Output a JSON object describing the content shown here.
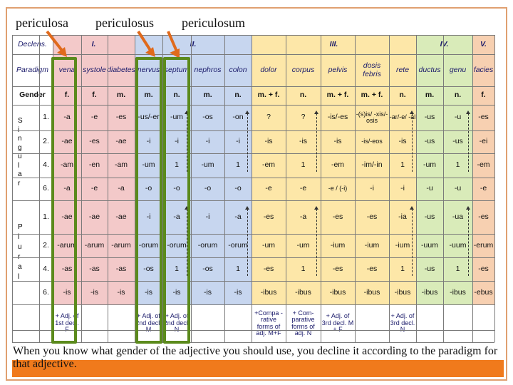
{
  "top_labels": [
    "periculosa",
    "periculosus",
    "periculosum"
  ],
  "bottom_note": "When you know what gender of the adjective you should use, you decline it according to the paradigm for that adjective.",
  "colors": {
    "decl1": "#f3c9c9",
    "decl2": "#c7d6ef",
    "decl3": "#fde7a8",
    "decl4": "#d9ebb9",
    "decl5": "#f7d0b1",
    "green_box": "#5b8a1c",
    "orange_bar": "#f07a1c"
  },
  "table": {
    "declens_label": "Declens.",
    "paradigm_label": "Paradigm",
    "gender_label": "Gender",
    "groups": [
      {
        "label": "I."
      },
      {
        "label": "II."
      },
      {
        "label": "III."
      },
      {
        "label": "IV."
      },
      {
        "label": "V."
      }
    ],
    "paradigms": [
      "vena",
      "systole",
      "diabetes",
      "nervus",
      "septum",
      "nephros",
      "colon",
      "dolor",
      "corpus",
      "pelvis",
      "dosis febris",
      "rete",
      "ductus",
      "genu",
      "facies"
    ],
    "genders": [
      "f.",
      "f.",
      "m.",
      "m.",
      "n.",
      "m.",
      "n.",
      "m. + f.",
      "n.",
      "m. + f.",
      "m. + f.",
      "n.",
      "m.",
      "n.",
      "f."
    ],
    "singular_side": [
      "S",
      "i",
      "n",
      "g",
      "u",
      "l",
      "a",
      "r"
    ],
    "plural_side": [
      "P",
      "l",
      "u",
      "r",
      "a",
      "l"
    ],
    "rows": [
      {
        "case": "1.",
        "cells": [
          "-a",
          "-e",
          "-es",
          "-us/-er",
          "-um",
          "-os",
          "-on",
          "?",
          "?",
          "-is/-es",
          "-(s)is/ -xis/-osis",
          "-ar/-e/ -al",
          "-us",
          "-u",
          "-es"
        ]
      },
      {
        "case": "2.",
        "cells": [
          "-ae",
          "-es",
          "-ae",
          "-i",
          "-i",
          "-i",
          "-i",
          "-is",
          "-is",
          "-is",
          "-is/-eos",
          "-is",
          "-us",
          "-us",
          "-ei"
        ]
      },
      {
        "case": "4.",
        "cells": [
          "-am",
          "-en",
          "-am",
          "-um",
          "1",
          "-um",
          "1",
          "-em",
          "1",
          "-em",
          "-im/-in",
          "1",
          "-um",
          "1",
          "-em"
        ]
      },
      {
        "case": "6.",
        "cells": [
          "-a",
          "-e",
          "-a",
          "-o",
          "-o",
          "-o",
          "-o",
          "-e",
          "-e",
          "-e / (-i)",
          "-i",
          "-i",
          "-u",
          "-u",
          "-e"
        ]
      },
      {
        "case": "1.",
        "cells": [
          "-ae",
          "-ae",
          "-ae",
          "-i",
          "-a",
          "-i",
          "-a",
          "-es",
          "-a",
          "-es",
          "-es",
          "-ia",
          "-us",
          "-ua",
          "-es"
        ]
      },
      {
        "case": "2.",
        "cells": [
          "-arum",
          "-arum",
          "-arum",
          "-orum",
          "-orum",
          "-orum",
          "-orum",
          "-um",
          "-um",
          "-ium",
          "-ium",
          "-ium",
          "-uum",
          "-uum",
          "-erum"
        ]
      },
      {
        "case": "4.",
        "cells": [
          "-as",
          "-as",
          "-as",
          "-os",
          "1",
          "-os",
          "1",
          "-es",
          "1",
          "-es",
          "-es",
          "1",
          "-us",
          "1",
          "-es"
        ]
      },
      {
        "case": "6.",
        "cells": [
          "-is",
          "-is",
          "-is",
          "-is",
          "-is",
          "-is",
          "-is",
          "-ibus",
          "-ibus",
          "-ibus",
          "-ibus",
          "-ibus",
          "-ibus",
          "-ibus",
          "-ebus"
        ]
      }
    ],
    "adj_notes": {
      "c0": "+ Adj. of 1st decl. F",
      "c3": "+ Adj. of 2nd decl. M",
      "c4": "+ Adj. of 2nd decl. N",
      "c7": "+Compa -rative forms of adj. M+F",
      "c8": "+ Com- parative forms of adj. N",
      "c9": "+ Adj. of 3rd decl. M + F",
      "c11": "+ Adj. of 3rd decl. N"
    }
  }
}
